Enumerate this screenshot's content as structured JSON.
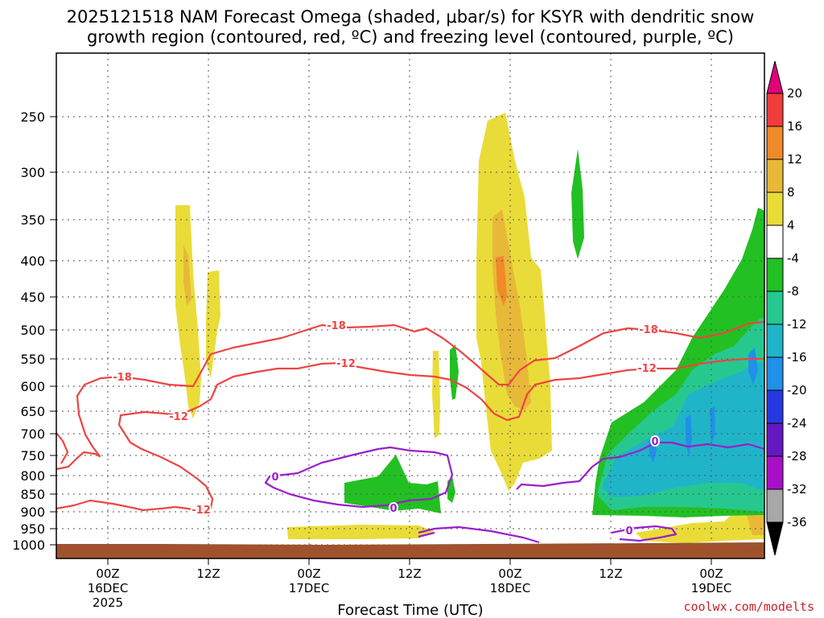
{
  "chart_data": {
    "type": "contour",
    "title_line1": "2025121518 NAM Forecast Omega (shaded, μbar/s) for KSYR with dendritic snow",
    "title_line2": "growth region (contoured, red, ºC) and freezing level (contoured, purple, ºC)",
    "xlabel": "Forecast Time (UTC)",
    "ylabel": "",
    "y_axis": {
      "unit": "hPa",
      "ticks": [
        250,
        300,
        350,
        400,
        450,
        500,
        550,
        600,
        650,
        700,
        750,
        800,
        850,
        900,
        950,
        1000
      ],
      "ylim": [
        1000,
        200
      ],
      "grid": true
    },
    "x_axis": {
      "start": "2025121518",
      "end": "2025121905",
      "ticks": [
        {
          "lines": [
            "00Z",
            "16DEC",
            "2025"
          ]
        },
        {
          "lines": [
            "12Z"
          ]
        },
        {
          "lines": [
            "00Z",
            "17DEC"
          ]
        },
        {
          "lines": [
            "12Z"
          ]
        },
        {
          "lines": [
            "00Z",
            "18DEC"
          ]
        },
        {
          "lines": [
            "12Z"
          ]
        },
        {
          "lines": [
            "00Z",
            "19DEC"
          ]
        }
      ]
    },
    "colorbar": {
      "labels": [
        "20",
        "16",
        "12",
        "8",
        "4",
        "-4",
        "-8",
        "-12",
        "-16",
        "-20",
        "-24",
        "-28",
        "-32",
        "-36"
      ],
      "colors": [
        "#e0007a",
        "#ef3d3d",
        "#f08a2a",
        "#e8b838",
        "#eadc38",
        "#ffffff",
        "#22c022",
        "#26c890",
        "#20b4c8",
        "#2090e8",
        "#2838e0",
        "#6418c0",
        "#a810c8",
        "#a8a8a8",
        "#000000"
      ]
    },
    "series": [
      {
        "name": "Omega (shaded)",
        "unit": "μbar/s",
        "levels": [
          -36,
          -32,
          -28,
          -24,
          -20,
          -16,
          -12,
          -8,
          -4,
          4,
          8,
          12,
          16,
          20
        ]
      },
      {
        "name": "Dendritic snow growth region (red)",
        "unit": "ºC",
        "contours": [
          -18,
          -12
        ]
      },
      {
        "name": "Freezing level (purple)",
        "unit": "ºC",
        "contours": [
          0
        ]
      }
    ],
    "contour_labels": {
      "red": [
        "-18",
        "-12",
        "-18",
        "-12",
        "-12",
        "-18",
        "-12"
      ],
      "purple": [
        "0",
        "0",
        "0",
        "0"
      ]
    }
  },
  "credit": "coolwx.com/modelts",
  "colors": {
    "red_contour": "#ee4444",
    "purple_contour": "#9a1ecc",
    "ground": "#a0522d",
    "grid": "#555555",
    "credit": "#c8202a"
  }
}
